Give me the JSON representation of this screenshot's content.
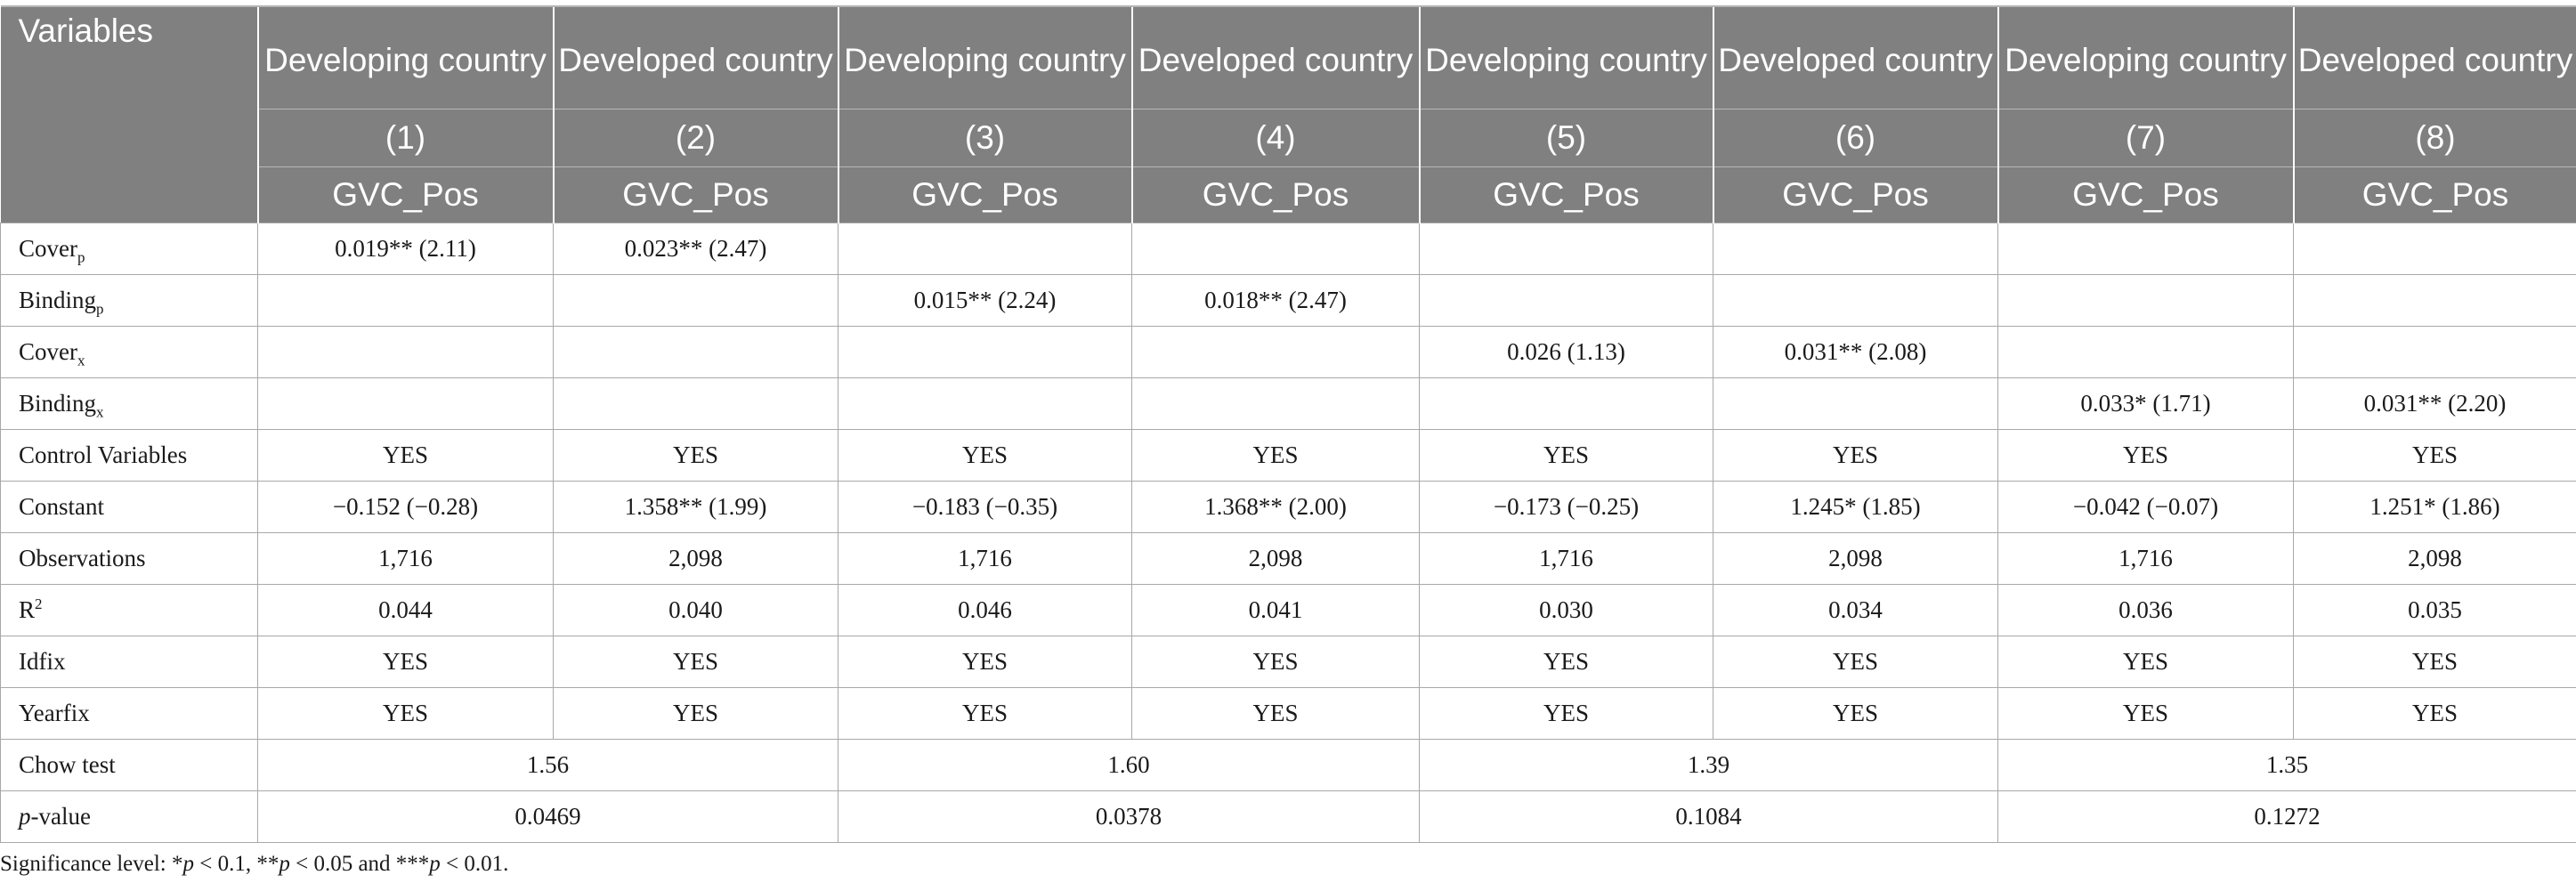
{
  "header": {
    "variables_label": "Variables",
    "group_labels": [
      "Developing country",
      "Developed country",
      "Developing country",
      "Developed country",
      "Developing country",
      "Developed country",
      "Developing country",
      "Developed country"
    ],
    "model_numbers": [
      "(1)",
      "(2)",
      "(3)",
      "(4)",
      "(5)",
      "(6)",
      "(7)",
      "(8)"
    ],
    "dependent": [
      "GVC_Pos",
      "GVC_Pos",
      "GVC_Pos",
      "GVC_Pos",
      "GVC_Pos",
      "GVC_Pos",
      "GVC_Pos",
      "GVC_Pos"
    ]
  },
  "rows": {
    "cover_p": {
      "label": "Cover",
      "sub": "p",
      "values": [
        "0.019** (2.11)",
        "0.023** (2.47)",
        "",
        "",
        "",
        "",
        "",
        ""
      ]
    },
    "binding_p": {
      "label": "Binding",
      "sub": "p",
      "values": [
        "",
        "",
        "0.015** (2.24)",
        "0.018** (2.47)",
        "",
        "",
        "",
        ""
      ]
    },
    "cover_x": {
      "label": "Cover",
      "sub": "x",
      "values": [
        "",
        "",
        "",
        "",
        "0.026 (1.13)",
        "0.031** (2.08)",
        "",
        ""
      ]
    },
    "binding_x": {
      "label": "Binding",
      "sub": "x",
      "values": [
        "",
        "",
        "",
        "",
        "",
        "",
        "0.033* (1.71)",
        "0.031** (2.20)"
      ]
    },
    "control": {
      "label": "Control Variables",
      "values": [
        "YES",
        "YES",
        "YES",
        "YES",
        "YES",
        "YES",
        "YES",
        "YES"
      ]
    },
    "constant": {
      "label": "Constant",
      "values": [
        "−0.152 (−0.28)",
        "1.358** (1.99)",
        "−0.183 (−0.35)",
        "1.368** (2.00)",
        "−0.173 (−0.25)",
        "1.245* (1.85)",
        "−0.042 (−0.07)",
        "1.251* (1.86)"
      ]
    },
    "observations": {
      "label": "Observations",
      "values": [
        "1,716",
        "2,098",
        "1,716",
        "2,098",
        "1,716",
        "2,098",
        "1,716",
        "2,098"
      ]
    },
    "r2": {
      "label": "R",
      "sup": "2",
      "values": [
        "0.044",
        "0.040",
        "0.046",
        "0.041",
        "0.030",
        "0.034",
        "0.036",
        "0.035"
      ]
    },
    "idfix": {
      "label": "Idfix",
      "values": [
        "YES",
        "YES",
        "YES",
        "YES",
        "YES",
        "YES",
        "YES",
        "YES"
      ]
    },
    "yearfix": {
      "label": "Yearfix",
      "values": [
        "YES",
        "YES",
        "YES",
        "YES",
        "YES",
        "YES",
        "YES",
        "YES"
      ]
    },
    "chow": {
      "label": "Chow test",
      "values": [
        "1.56",
        "1.60",
        "1.39",
        "1.35"
      ]
    },
    "pvalue": {
      "label_italic": "p",
      "label_rest": "-value",
      "values": [
        "0.0469",
        "0.0378",
        "0.1084",
        "0.1272"
      ]
    }
  },
  "note": {
    "prefix": "Significance level: *",
    "p1": "p",
    "t1": " < 0.1, **",
    "p2": "p",
    "t2": " < 0.05 and ***",
    "p3": "p",
    "t3": " < 0.01."
  }
}
